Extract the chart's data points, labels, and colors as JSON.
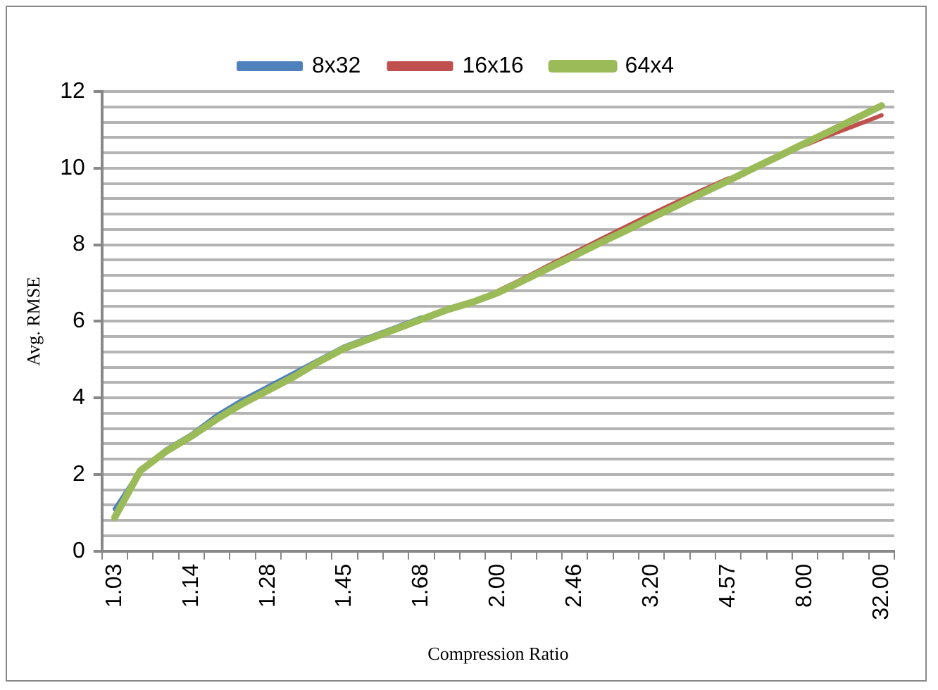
{
  "chart_data": {
    "type": "line",
    "xlabel": "Compression Ratio",
    "ylabel": "Avg. RMSE",
    "categories": [
      "1.03",
      null,
      null,
      "1.14",
      null,
      null,
      "1.28",
      null,
      null,
      "1.45",
      null,
      null,
      "1.68",
      null,
      null,
      "2.00",
      null,
      null,
      "2.46",
      null,
      null,
      "3.20",
      null,
      null,
      "4.57",
      null,
      null,
      "8.00",
      null,
      null,
      "32.00"
    ],
    "series": [
      {
        "name": "8x32",
        "color": "#4f81bd",
        "values": [
          1.1,
          2.1,
          2.65,
          3.05,
          3.55,
          3.95,
          4.3,
          4.65,
          5.0,
          5.35,
          5.6,
          5.85,
          6.1,
          null,
          null,
          null,
          null,
          null,
          null,
          null,
          null,
          null,
          null,
          null,
          null,
          null,
          null,
          null,
          null,
          null,
          null
        ]
      },
      {
        "name": "16x16",
        "color": "#c0504d",
        "values": [
          null,
          null,
          null,
          null,
          null,
          null,
          null,
          null,
          null,
          null,
          null,
          null,
          null,
          null,
          null,
          6.8,
          7.12,
          7.47,
          7.8,
          8.14,
          8.47,
          8.8,
          9.12,
          9.43,
          9.73,
          null,
          null,
          10.6,
          10.87,
          11.12,
          11.38
        ]
      },
      {
        "name": "64x4",
        "color": "#9bbb59",
        "values": [
          0.88,
          2.1,
          2.6,
          3.0,
          3.45,
          3.85,
          4.2,
          4.55,
          4.95,
          5.3,
          5.55,
          5.8,
          6.05,
          6.3,
          6.5,
          6.75,
          7.07,
          7.4,
          7.72,
          8.05,
          8.37,
          8.7,
          9.02,
          9.35,
          9.67,
          10.0,
          10.32,
          10.65,
          10.97,
          11.3,
          11.63
        ]
      }
    ],
    "ylim": [
      0,
      12
    ],
    "yticks": [
      0,
      {
        "value": 0.4,
        "label": null
      },
      {
        "value": 0.8,
        "label": null
      },
      {
        "value": 1.2,
        "label": null
      },
      {
        "value": 1.6,
        "label": null
      },
      2,
      {
        "value": 2.4,
        "label": null
      },
      {
        "value": 2.8,
        "label": null
      },
      {
        "value": 3.2,
        "label": null
      },
      {
        "value": 3.6,
        "label": null
      },
      4,
      {
        "value": 4.4,
        "label": null
      },
      {
        "value": 4.8,
        "label": null
      },
      {
        "value": 5.2,
        "label": null
      },
      {
        "value": 5.6,
        "label": null
      },
      6,
      {
        "value": 6.4,
        "label": null
      },
      {
        "value": 6.8,
        "label": null
      },
      {
        "value": 7.2,
        "label": null
      },
      {
        "value": 7.6,
        "label": null
      },
      8,
      {
        "value": 8.4,
        "label": null
      },
      {
        "value": 8.8,
        "label": null
      },
      {
        "value": 9.2,
        "label": null
      },
      {
        "value": 9.6,
        "label": null
      },
      10,
      {
        "value": 10.4,
        "label": null
      },
      {
        "value": 10.8,
        "label": null
      },
      {
        "value": 11.2,
        "label": null
      },
      {
        "value": 11.6,
        "label": null
      },
      12
    ],
    "grid": "y",
    "legend": "top",
    "marker": "none",
    "line_style": "solid"
  }
}
